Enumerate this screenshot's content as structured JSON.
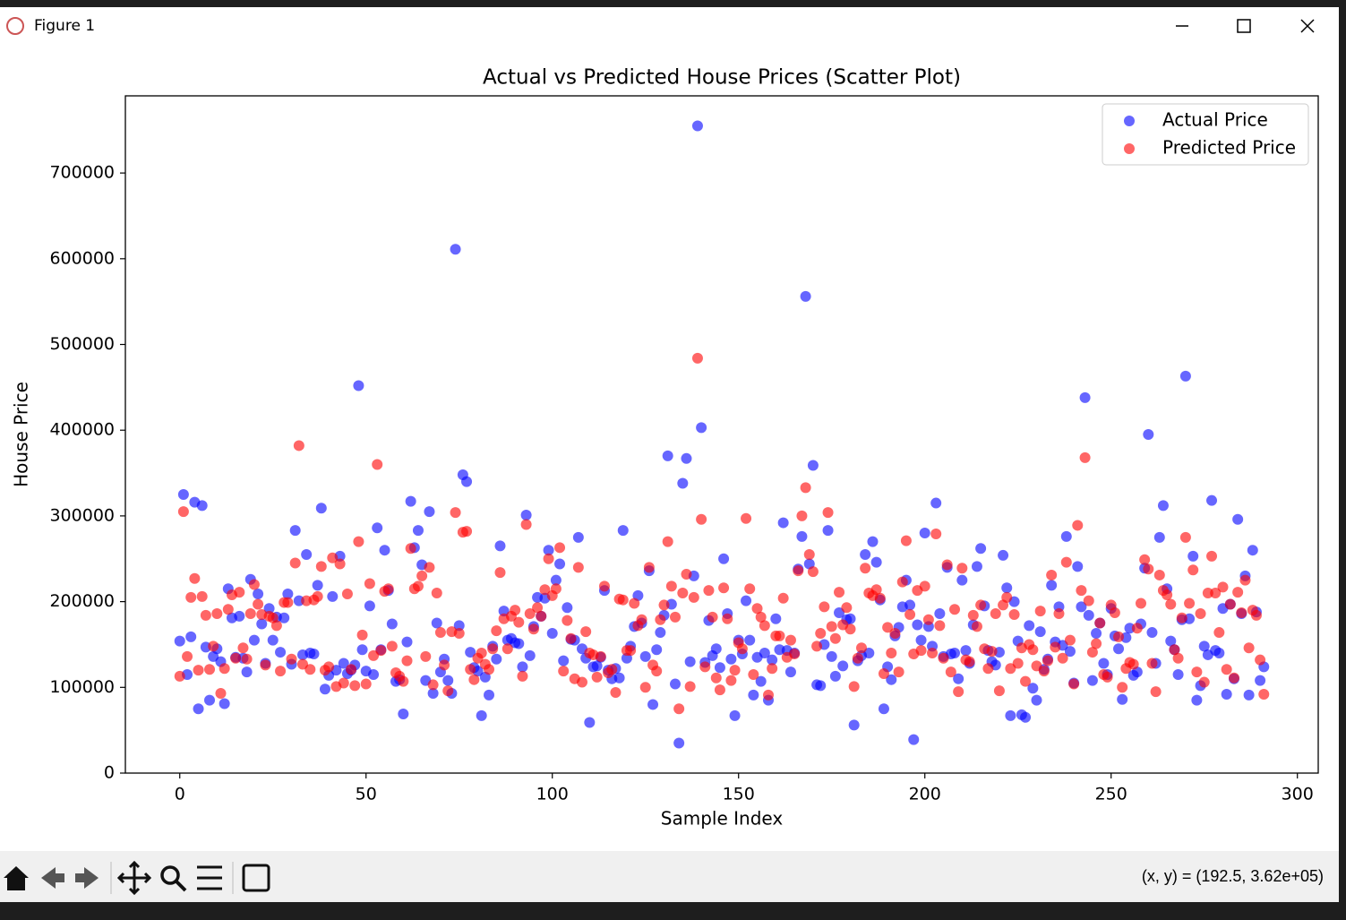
{
  "window": {
    "title": "Figure 1"
  },
  "toolbar": {
    "status": "(x, y) = (192.5, 3.62e+05)"
  },
  "chart_data": {
    "type": "scatter",
    "title": "Actual vs Predicted House Prices (Scatter Plot)",
    "x_label": "Sample Index",
    "y_label": "House Price",
    "xlim": [
      -14.6,
      305.6
    ],
    "ylim": [
      0,
      790000
    ],
    "xticks": [
      0,
      50,
      100,
      150,
      200,
      250,
      300
    ],
    "yticks": [
      0,
      100000,
      200000,
      300000,
      400000,
      500000,
      600000,
      700000
    ],
    "legend": "upper right",
    "alpha": 0.6,
    "x": [
      0,
      1,
      2,
      3,
      4,
      5,
      6,
      7,
      8,
      9,
      10,
      11,
      12,
      13,
      14,
      15,
      16,
      17,
      18,
      19,
      20,
      21,
      22,
      23,
      24,
      25,
      26,
      27,
      28,
      29,
      30,
      31,
      32,
      33,
      34,
      35,
      36,
      37,
      38,
      39,
      40,
      41,
      42,
      43,
      44,
      45,
      46,
      47,
      48,
      49,
      50,
      51,
      52,
      53,
      54,
      55,
      56,
      57,
      58,
      59,
      60,
      61,
      62,
      63,
      64,
      65,
      66,
      67,
      68,
      69,
      70,
      71,
      72,
      73,
      74,
      75,
      76,
      77,
      78,
      79,
      80,
      81,
      82,
      83,
      84,
      85,
      86,
      87,
      88,
      89,
      90,
      91,
      92,
      93,
      94,
      95,
      96,
      97,
      98,
      99,
      100,
      101,
      102,
      103,
      104,
      105,
      106,
      107,
      108,
      109,
      110,
      111,
      112,
      113,
      114,
      115,
      116,
      117,
      118,
      119,
      120,
      121,
      122,
      123,
      124,
      125,
      126,
      127,
      128,
      129,
      130,
      131,
      132,
      133,
      134,
      135,
      136,
      137,
      138,
      139,
      140,
      141,
      142,
      143,
      144,
      145,
      146,
      147,
      148,
      149,
      150,
      151,
      152,
      153,
      154,
      155,
      156,
      157,
      158,
      159,
      160,
      161,
      162,
      163,
      164,
      165,
      166,
      167,
      168,
      169,
      170,
      171,
      172,
      173,
      174,
      175,
      176,
      177,
      178,
      179,
      180,
      181,
      182,
      183,
      184,
      185,
      186,
      187,
      188,
      189,
      190,
      191,
      192,
      193,
      194,
      195,
      196,
      197,
      198,
      199,
      200,
      201,
      202,
      203,
      204,
      205,
      206,
      207,
      208,
      209,
      210,
      211,
      212,
      213,
      214,
      215,
      216,
      217,
      218,
      219,
      220,
      221,
      222,
      223,
      224,
      225,
      226,
      227,
      228,
      229,
      230,
      231,
      232,
      233,
      234,
      235,
      236,
      237,
      238,
      239,
      240,
      241,
      242,
      243,
      244,
      245,
      246,
      247,
      248,
      249,
      250,
      251,
      252,
      253,
      254,
      255,
      256,
      257,
      258,
      259,
      260,
      261,
      262,
      263,
      264,
      265,
      266,
      267,
      268,
      269,
      270,
      271,
      272,
      273,
      274,
      275,
      276,
      277,
      278,
      279,
      280,
      281,
      282,
      283,
      284,
      285,
      286,
      287,
      288,
      289,
      290,
      291
    ],
    "series": [
      {
        "name": "Actual Price",
        "color": "#0000ff",
        "values": [
          154000,
          325000,
          115000,
          159000,
          316000,
          75000,
          312000,
          147000,
          85000,
          136000,
          145000,
          130000,
          81000,
          215000,
          181000,
          135000,
          183000,
          134000,
          118000,
          226000,
          155000,
          209000,
          174000,
          128000,
          192000,
          155000,
          182000,
          141000,
          181000,
          209000,
          127000,
          283000,
          201000,
          138000,
          255000,
          140000,
          139000,
          219000,
          309000,
          98000,
          114000,
          206000,
          120000,
          253000,
          128000,
          116000,
          120000,
          126000,
          452000,
          144000,
          119000,
          195000,
          115000,
          286000,
          144000,
          260000,
          213000,
          174000,
          107000,
          109000,
          69000,
          153000,
          317000,
          263000,
          283000,
          243000,
          108000,
          305000,
          93000,
          175000,
          118000,
          133000,
          108000,
          93000,
          611000,
          172000,
          348000,
          340000,
          141000,
          123000,
          119000,
          67000,
          112000,
          91000,
          148000,
          133000,
          265000,
          189000,
          155000,
          157000,
          152000,
          151000,
          124000,
          301000,
          137000,
          171000,
          205000,
          183000,
          204000,
          260000,
          163000,
          225000,
          244000,
          131000,
          193000,
          156000,
          155000,
          275000,
          145000,
          134000,
          59000,
          124000,
          125000,
          135000,
          213000,
          120000,
          110000,
          122000,
          111000,
          283000,
          134000,
          148000,
          171000,
          207000,
          175000,
          136000,
          236000,
          80000,
          144000,
          164000,
          184000,
          370000,
          197000,
          104000,
          35000,
          338000,
          367000,
          130000,
          230000,
          755000,
          403000,
          129000,
          178000,
          137000,
          145000,
          123000,
          250000,
          186000,
          133000,
          67000,
          155000,
          139000,
          201000,
          155000,
          91000,
          135000,
          107000,
          140000,
          85000,
          132000,
          180000,
          144000,
          292000,
          143000,
          118000,
          140000,
          238000,
          276000,
          556000,
          244000,
          359000,
          103000,
          102000,
          150000,
          283000,
          136000,
          113000,
          187000,
          125000,
          179000,
          180000,
          56000,
          131000,
          137000,
          255000,
          140000,
          270000,
          246000,
          202000,
          75000,
          124000,
          109000,
          160000,
          170000,
          194000,
          225000,
          196000,
          39000,
          173000,
          155000,
          280000,
          171000,
          148000,
          315000,
          186000,
          136000,
          240000,
          139000,
          140000,
          110000,
          225000,
          143000,
          128000,
          173000,
          241000,
          262000,
          195000,
          143000,
          130000,
          126000,
          141000,
          254000,
          216000,
          67000,
          200000,
          154000,
          68000,
          65000,
          172000,
          99000,
          85000,
          165000,
          121000,
          133000,
          219000,
          153000,
          194000,
          149000,
          276000,
          142000,
          105000,
          241000,
          194000,
          438000,
          184000,
          108000,
          163000,
          175000,
          128000,
          115000,
          192000,
          160000,
          145000,
          86000,
          158000,
          169000,
          114000,
          118000,
          174000,
          239000,
          395000,
          164000,
          128000,
          275000,
          312000,
          215000,
          154000,
          144000,
          115000,
          179000,
          463000,
          180000,
          253000,
          85000,
          102000,
          148000,
          138000,
          318000,
          143000,
          140000,
          192000,
          92000,
          197000,
          110000,
          296000,
          186000,
          230000,
          91000,
          260000,
          188000,
          108000,
          124000
        ]
      },
      {
        "name": "Predicted Price",
        "color": "#ff0000",
        "values": [
          113000,
          305000,
          136000,
          205000,
          227000,
          120000,
          206000,
          184000,
          121000,
          148000,
          186000,
          93000,
          122000,
          191000,
          208000,
          134000,
          211000,
          146000,
          133000,
          186000,
          220000,
          197000,
          185000,
          126000,
          183000,
          181000,
          172000,
          119000,
          199000,
          199000,
          133000,
          245000,
          382000,
          127000,
          201000,
          121000,
          202000,
          206000,
          241000,
          120000,
          124000,
          251000,
          101000,
          244000,
          105000,
          209000,
          121000,
          102000,
          270000,
          161000,
          104000,
          221000,
          137000,
          360000,
          143000,
          212000,
          215000,
          148000,
          117000,
          113000,
          107000,
          131000,
          262000,
          215000,
          218000,
          230000,
          136000,
          240000,
          103000,
          210000,
          164000,
          126000,
          96000,
          165000,
          304000,
          163000,
          281000,
          282000,
          121000,
          109000,
          134000,
          140000,
          127000,
          121000,
          145000,
          166000,
          234000,
          180000,
          145000,
          183000,
          190000,
          176000,
          113000,
          290000,
          186000,
          168000,
          193000,
          183000,
          214000,
          250000,
          207000,
          215000,
          263000,
          119000,
          178000,
          157000,
          110000,
          240000,
          106000,
          165000,
          140000,
          138000,
          112000,
          136000,
          218000,
          117000,
          121000,
          94000,
          203000,
          202000,
          143000,
          143000,
          198000,
          172000,
          179000,
          100000,
          240000,
          126000,
          119000,
          179000,
          196000,
          270000,
          218000,
          182000,
          75000,
          210000,
          232000,
          101000,
          205000,
          484000,
          296000,
          124000,
          213000,
          182000,
          111000,
          97000,
          216000,
          180000,
          108000,
          120000,
          152000,
          145000,
          297000,
          215000,
          115000,
          192000,
          182000,
          172000,
          91000,
          122000,
          160000,
          160000,
          204000,
          135000,
          155000,
          139000,
          236000,
          300000,
          333000,
          255000,
          235000,
          148000,
          163000,
          194000,
          304000,
          171000,
          157000,
          211000,
          173000,
          193000,
          168000,
          101000,
          134000,
          146000,
          239000,
          210000,
          207000,
          214000,
          204000,
          116000,
          170000,
          140000,
          163000,
          118000,
          223000,
          271000,
          185000,
          139000,
          213000,
          143000,
          218000,
          179000,
          140000,
          279000,
          172000,
          134000,
          243000,
          118000,
          191000,
          95000,
          239000,
          132000,
          130000,
          184000,
          171000,
          196000,
          145000,
          122000,
          142000,
          186000,
          96000,
          196000,
          205000,
          122000,
          185000,
          128000,
          146000,
          107000,
          150000,
          144000,
          125000,
          189000,
          119000,
          131000,
          231000,
          147000,
          186000,
          134000,
          246000,
          155000,
          104000,
          289000,
          213000,
          368000,
          201000,
          141000,
          151000,
          175000,
          115000,
          112000,
          196000,
          187000,
          159000,
          100000,
          122000,
          129000,
          127000,
          169000,
          198000,
          249000,
          238000,
          128000,
          95000,
          231000,
          213000,
          208000,
          197000,
          144000,
          134000,
          181000,
          275000,
          198000,
          237000,
          118000,
          186000,
          106000,
          210000,
          253000,
          210000,
          164000,
          217000,
          121000,
          197000,
          111000,
          211000,
          187000,
          225000,
          146000,
          190000,
          184000,
          132000,
          92000
        ]
      }
    ]
  }
}
